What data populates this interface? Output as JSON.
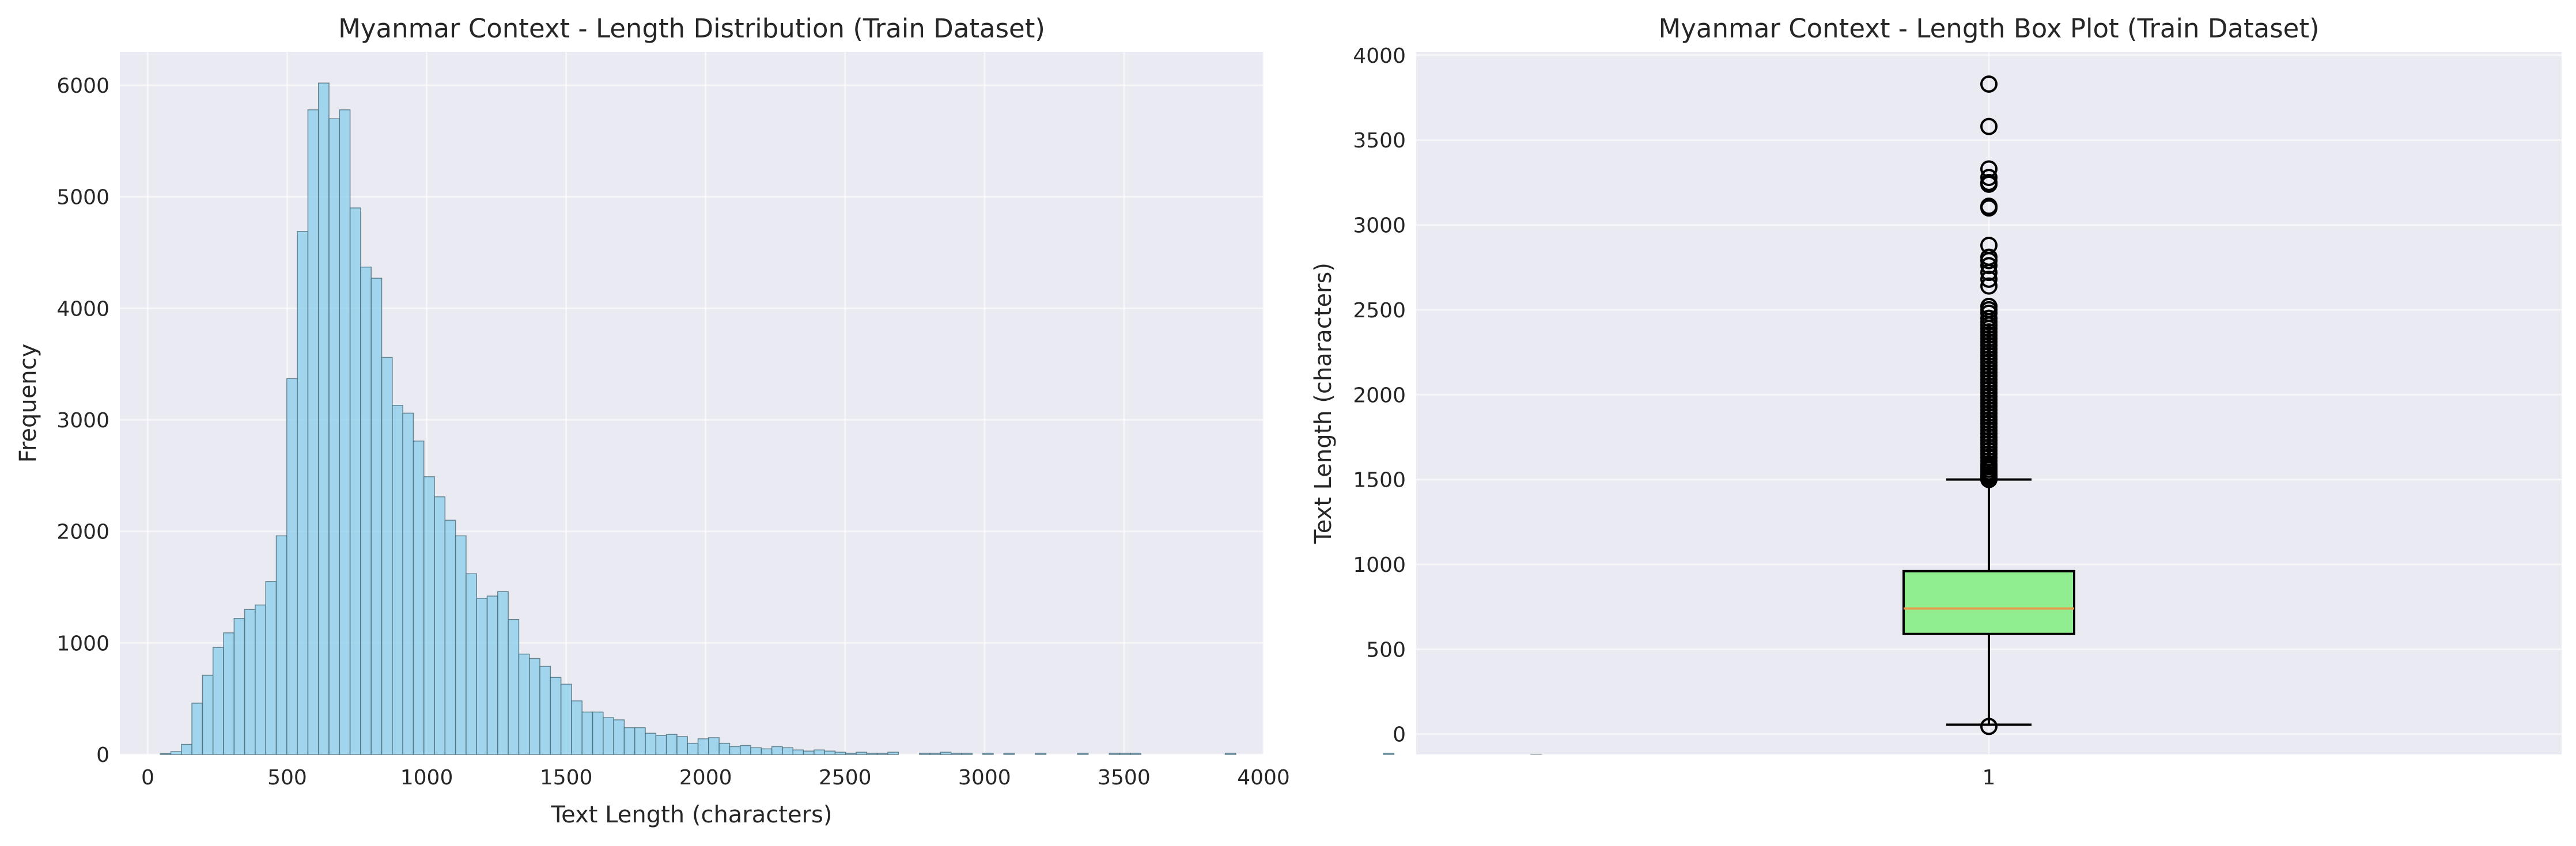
{
  "colors": {
    "plot_bg": "#EAEAF2",
    "grid": "#FFFFFF",
    "bar_fill": "#87CEEB",
    "bar_edge": "#4a6b78",
    "box_fill": "#90EE90",
    "median": "#E69C4C",
    "whisker": "#000000"
  },
  "chart_data": [
    {
      "type": "bar",
      "title": "Myanmar Context - Length Distribution (Train Dataset)",
      "xlabel": "Text Length (characters)",
      "ylabel": "Frequency",
      "xlim": [
        -100,
        4000
      ],
      "ylim": [
        0,
        6300
      ],
      "xticks": [
        0,
        500,
        1000,
        1500,
        2000,
        2500,
        3000,
        3500,
        4000
      ],
      "yticks": [
        0,
        1000,
        2000,
        3000,
        4000,
        5000,
        6000
      ],
      "grid": true,
      "bin_start": 45,
      "bin_width": 37.8,
      "values": [
        8,
        25,
        90,
        460,
        710,
        960,
        1090,
        1220,
        1300,
        1340,
        1550,
        1960,
        3370,
        4690,
        5780,
        6020,
        5700,
        5780,
        4900,
        4370,
        4270,
        3560,
        3130,
        3060,
        2810,
        2490,
        2310,
        2100,
        1960,
        1620,
        1400,
        1420,
        1460,
        1210,
        900,
        860,
        790,
        690,
        630,
        480,
        380,
        380,
        330,
        310,
        240,
        240,
        190,
        170,
        180,
        160,
        100,
        140,
        150,
        100,
        70,
        80,
        60,
        50,
        70,
        60,
        40,
        30,
        40,
        30,
        20,
        10,
        20,
        10,
        10,
        20,
        0,
        0,
        10,
        10,
        20,
        10,
        10,
        0,
        10,
        0,
        10,
        0,
        0,
        10,
        0,
        0,
        0,
        10,
        0,
        0,
        10,
        10,
        10,
        0,
        0,
        0,
        0,
        0,
        0,
        0,
        0,
        10,
        0,
        0,
        0,
        0,
        0,
        0,
        0,
        0,
        0,
        0,
        0,
        0,
        0,
        0,
        10,
        0,
        0,
        0,
        0,
        0,
        0,
        0,
        0,
        0,
        0,
        0,
        0,
        0,
        10
      ]
    },
    {
      "type": "box",
      "title": "Myanmar Context - Length Box Plot (Train Dataset)",
      "xlabel": "",
      "ylabel": "Text Length (characters)",
      "ylim": [
        -120,
        4020
      ],
      "yticks": [
        0,
        500,
        1000,
        1500,
        2000,
        2500,
        3000,
        3500,
        4000
      ],
      "categories": [
        "1"
      ],
      "grid": true,
      "whisker_low": 55,
      "q1": 590,
      "median": 740,
      "q3": 960,
      "whisker_high": 1500,
      "outliers": [
        45,
        1500,
        1510,
        1520,
        1530,
        1545,
        1560,
        1575,
        1590,
        1610,
        1630,
        1650,
        1670,
        1690,
        1710,
        1730,
        1750,
        1770,
        1790,
        1810,
        1830,
        1850,
        1870,
        1890,
        1910,
        1930,
        1950,
        1970,
        1990,
        2010,
        2030,
        2050,
        2070,
        2090,
        2110,
        2130,
        2150,
        2170,
        2190,
        2210,
        2230,
        2250,
        2270,
        2290,
        2310,
        2330,
        2350,
        2370,
        2390,
        2410,
        2430,
        2450,
        2480,
        2500,
        2520,
        2640,
        2680,
        2720,
        2760,
        2790,
        2810,
        2880,
        3100,
        3110,
        3240,
        3250,
        3280,
        3330,
        3580,
        3830
      ]
    }
  ]
}
